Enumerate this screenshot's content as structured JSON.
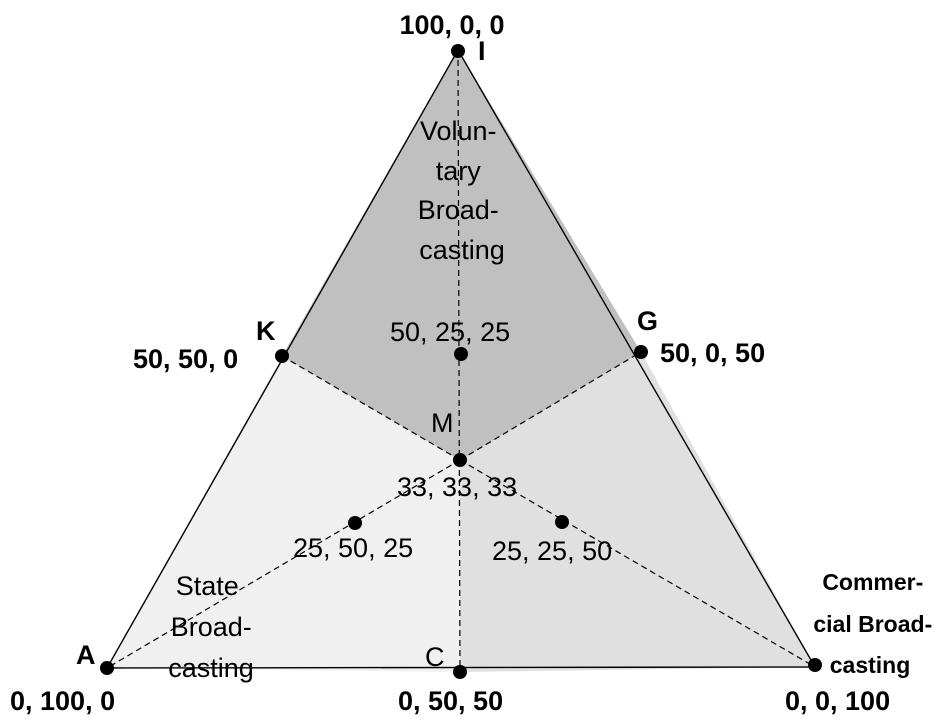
{
  "regions": {
    "voluntary": {
      "lines": [
        "Volun-",
        "tary",
        "Broad-",
        "casting"
      ],
      "color": "#c0c0c0"
    },
    "state": {
      "lines": [
        "State",
        "Broad-",
        "casting"
      ],
      "color": "#f0f0f0"
    },
    "commercial": {
      "lines": [
        "Commer-",
        "cial Broad-",
        "casting"
      ],
      "color": "#e0e0e0"
    }
  },
  "vertices": {
    "I": {
      "letter": "I",
      "coords": "100, 0, 0"
    },
    "A": {
      "letter": "A",
      "coords": "0, 100, 0"
    },
    "E": {
      "coords": "0, 0, 100"
    }
  },
  "points": {
    "K": {
      "letter": "K",
      "coords": "50, 50, 0"
    },
    "G": {
      "letter": "G",
      "coords": "50, 0, 50"
    },
    "C": {
      "letter": "C",
      "coords": "0, 50, 50"
    },
    "M": {
      "letter": "M",
      "coords": "33, 33, 33"
    },
    "P1": {
      "coords": "50, 25, 25"
    },
    "P2": {
      "coords": "25, 50, 25"
    },
    "P3": {
      "coords": "25, 25, 50"
    }
  }
}
